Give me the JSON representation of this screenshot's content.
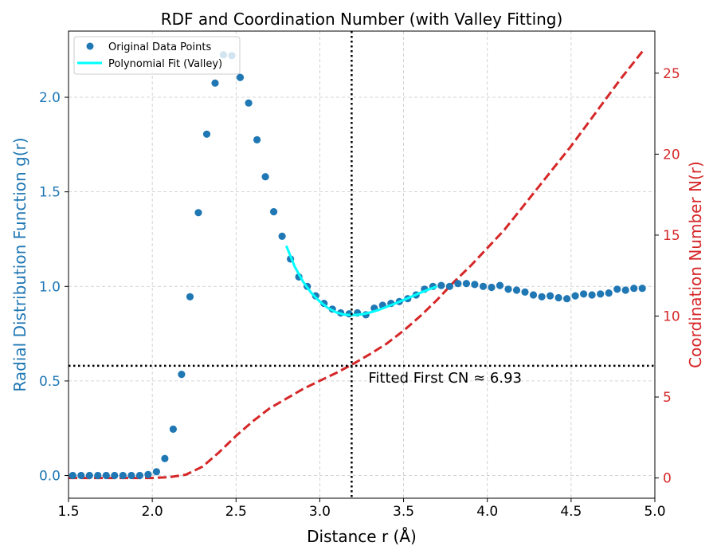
{
  "chart_data": {
    "type": "scatter",
    "title": "RDF and Coordination Number (with Valley Fitting)",
    "xlabel": "Distance r (Å)",
    "ylabel_left": "Radial Distribution Function g(r)",
    "ylabel_right": "Coordination Number N(r)",
    "xlim": [
      1.5,
      5.0
    ],
    "ylim_left": [
      -0.12,
      2.35
    ],
    "ylim_right": [
      -1.25,
      27.6
    ],
    "xticks": [
      "1.5",
      "2.0",
      "2.5",
      "3.0",
      "3.5",
      "4.0",
      "4.5",
      "5.0"
    ],
    "yticks_left": [
      "0.0",
      "0.5",
      "1.0",
      "1.5",
      "2.0"
    ],
    "yticks_right": [
      "0",
      "5",
      "10",
      "15",
      "20",
      "25"
    ],
    "grid": true,
    "legend_position": "top-left",
    "colors": {
      "points": "#1f77b4",
      "fit": "#00ffff",
      "cn": "#d62728",
      "left_axis": "#1f77b4",
      "right_axis": "#d62728"
    },
    "series": [
      {
        "name": "Original Data Points",
        "kind": "scatter",
        "axis": "left",
        "x": [
          1.525,
          1.575,
          1.625,
          1.675,
          1.725,
          1.775,
          1.825,
          1.875,
          1.925,
          1.975,
          2.025,
          2.075,
          2.125,
          2.175,
          2.225,
          2.275,
          2.325,
          2.375,
          2.425,
          2.475,
          2.525,
          2.575,
          2.625,
          2.675,
          2.725,
          2.775,
          2.825,
          2.875,
          2.925,
          2.975,
          3.025,
          3.075,
          3.125,
          3.175,
          3.225,
          3.275,
          3.325,
          3.375,
          3.425,
          3.475,
          3.525,
          3.575,
          3.625,
          3.675,
          3.725,
          3.775,
          3.825,
          3.875,
          3.925,
          3.975,
          4.025,
          4.075,
          4.125,
          4.175,
          4.225,
          4.275,
          4.325,
          4.375,
          4.425,
          4.475,
          4.525,
          4.575,
          4.625,
          4.675,
          4.725,
          4.775,
          4.825,
          4.875,
          4.925
        ],
        "y": [
          0.0,
          0.0,
          0.0,
          0.0,
          0.0,
          0.0,
          0.0,
          0.0,
          0.0,
          0.005,
          0.02,
          0.09,
          0.245,
          0.535,
          0.945,
          1.39,
          1.805,
          2.075,
          2.225,
          2.22,
          2.105,
          1.97,
          1.775,
          1.58,
          1.395,
          1.265,
          1.145,
          1.05,
          1.0,
          0.95,
          0.91,
          0.88,
          0.86,
          0.855,
          0.86,
          0.85,
          0.885,
          0.9,
          0.91,
          0.92,
          0.935,
          0.955,
          0.985,
          1.0,
          1.005,
          1.0,
          1.015,
          1.015,
          1.01,
          1.0,
          0.995,
          1.005,
          0.985,
          0.98,
          0.97,
          0.955,
          0.945,
          0.95,
          0.94,
          0.935,
          0.95,
          0.96,
          0.955,
          0.96,
          0.965,
          0.985,
          0.98,
          0.99,
          0.99
        ]
      },
      {
        "name": "Polynomial Fit (Valley)",
        "kind": "line",
        "axis": "left",
        "x": [
          2.8,
          2.85,
          2.9,
          2.95,
          3.0,
          3.05,
          3.1,
          3.15,
          3.2,
          3.25,
          3.3,
          3.35,
          3.4,
          3.45,
          3.5,
          3.55,
          3.6,
          3.65,
          3.7
        ],
        "y": [
          1.215,
          1.105,
          1.025,
          0.965,
          0.92,
          0.885,
          0.862,
          0.85,
          0.848,
          0.852,
          0.862,
          0.875,
          0.892,
          0.91,
          0.928,
          0.947,
          0.966,
          0.984,
          1.0
        ]
      },
      {
        "kind": "dashed-line",
        "axis": "right",
        "x": [
          1.5,
          1.7,
          1.9,
          2.0,
          2.1,
          2.2,
          2.3,
          2.4,
          2.5,
          2.6,
          2.7,
          2.8,
          2.9,
          3.0,
          3.1,
          3.2,
          3.3,
          3.4,
          3.5,
          3.6,
          3.7,
          3.8,
          3.9,
          4.0,
          4.1,
          4.2,
          4.3,
          4.4,
          4.5,
          4.6,
          4.7,
          4.8,
          4.93
        ],
        "y": [
          0.0,
          0.0,
          0.0,
          0.0,
          0.05,
          0.2,
          0.7,
          1.6,
          2.6,
          3.5,
          4.3,
          4.9,
          5.5,
          6.0,
          6.5,
          7.05,
          7.65,
          8.3,
          9.1,
          10.0,
          11.0,
          12.1,
          13.1,
          14.2,
          15.3,
          16.6,
          17.9,
          19.2,
          20.5,
          21.9,
          23.3,
          24.7,
          26.4
        ]
      }
    ],
    "reference_lines": {
      "vertical_x": 3.19,
      "horizontal_cn": 6.93
    },
    "annotation": "Fitted First CN ≈ 6.93"
  }
}
